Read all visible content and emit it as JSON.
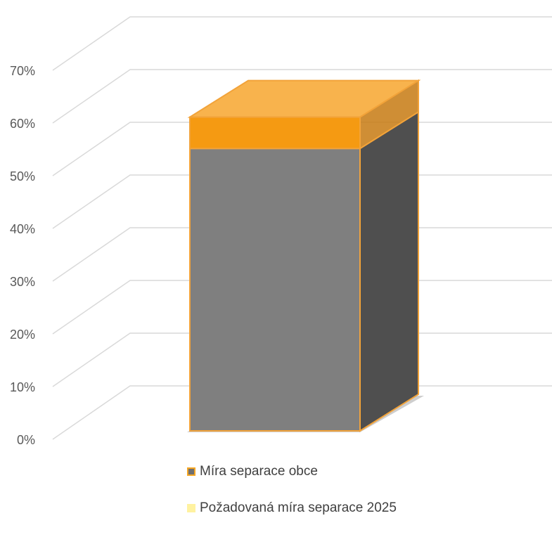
{
  "chart_data": {
    "type": "bar",
    "style": "3d-column",
    "categories": [
      ""
    ],
    "series": [
      {
        "name": "Míra separace obce",
        "values": [
          54
        ],
        "fill": "#7f7f7f",
        "side": "#4f4f4f",
        "edge": "#f2a33a"
      },
      {
        "name": "Požadovaná míra separace 2025",
        "values": [
          60
        ],
        "fill": "#f59a12",
        "edge": "#f2a33a"
      }
    ],
    "y_ticks": [
      "0%",
      "10%",
      "20%",
      "30%",
      "40%",
      "50%",
      "60%",
      "70%"
    ],
    "ylim": [
      0,
      70
    ],
    "grid": true,
    "legend_position": "bottom",
    "title": "",
    "xlabel": "",
    "ylabel": ""
  }
}
